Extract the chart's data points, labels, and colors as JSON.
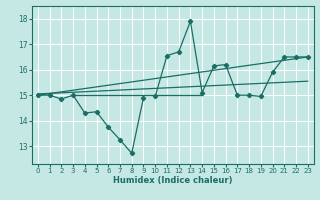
{
  "xlabel": "Humidex (Indice chaleur)",
  "xlim": [
    -0.5,
    23.5
  ],
  "ylim": [
    12.3,
    18.5
  ],
  "yticks": [
    13,
    14,
    15,
    16,
    17,
    18
  ],
  "xticks": [
    0,
    1,
    2,
    3,
    4,
    5,
    6,
    7,
    8,
    9,
    10,
    11,
    12,
    13,
    14,
    15,
    16,
    17,
    18,
    19,
    20,
    21,
    22,
    23
  ],
  "bg_color": "#c5e8e5",
  "grid_color": "#ffffff",
  "line_color": "#1a6e64",
  "lines": [
    {
      "x": [
        0,
        1,
        2,
        3,
        4,
        5,
        6,
        7,
        8,
        9
      ],
      "y": [
        15.0,
        15.0,
        14.85,
        15.0,
        14.3,
        14.35,
        13.75,
        13.25,
        12.72,
        14.9
      ]
    },
    {
      "x": [
        10,
        11,
        12,
        13,
        14,
        15,
        16,
        17,
        18,
        19,
        20,
        21,
        22,
        23
      ],
      "y": [
        14.95,
        16.55,
        16.7,
        17.9,
        15.1,
        16.15,
        16.2,
        15.0,
        15.0,
        14.95,
        15.9,
        16.5,
        16.5,
        16.5
      ]
    },
    {
      "x": [
        0,
        23
      ],
      "y": [
        15.0,
        16.5
      ]
    },
    {
      "x": [
        3,
        14
      ],
      "y": [
        15.0,
        15.0
      ]
    },
    {
      "x": [
        0,
        23
      ],
      "y": [
        15.05,
        15.55
      ]
    }
  ],
  "marker_lines": [
    0,
    1
  ],
  "no_marker_lines": [
    2,
    3,
    4
  ],
  "marker": "D",
  "marker_size": 2.2,
  "lw": 0.9
}
